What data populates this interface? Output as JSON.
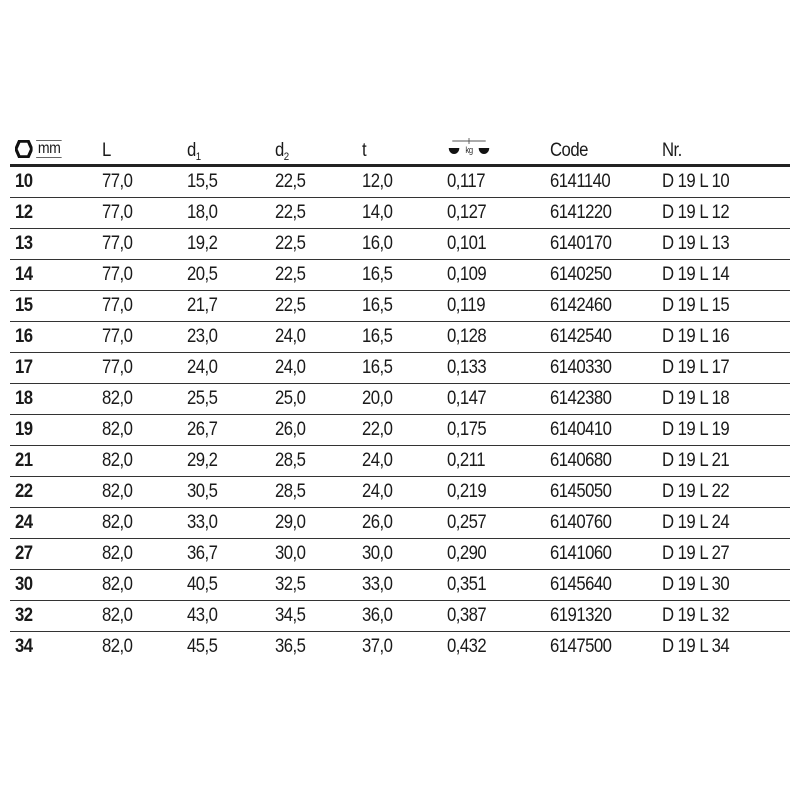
{
  "header": {
    "size_icon": "hexagon-icon",
    "size_unit": "mm",
    "L": "L",
    "d1": "d",
    "d1_sub": "1",
    "d2": "d",
    "d2_sub": "2",
    "t": "t",
    "weight_icon": "scale-icon",
    "weight_unit": "kg",
    "code": "Code",
    "nr": "Nr."
  },
  "rows": [
    [
      "10",
      "77,0",
      "15,5",
      "22,5",
      "12,0",
      "0,117",
      "6141140",
      "D 19 L 10"
    ],
    [
      "12",
      "77,0",
      "18,0",
      "22,5",
      "14,0",
      "0,127",
      "6141220",
      "D 19 L 12"
    ],
    [
      "13",
      "77,0",
      "19,2",
      "22,5",
      "16,0",
      "0,101",
      "6140170",
      "D 19 L 13"
    ],
    [
      "14",
      "77,0",
      "20,5",
      "22,5",
      "16,5",
      "0,109",
      "6140250",
      "D 19 L 14"
    ],
    [
      "15",
      "77,0",
      "21,7",
      "22,5",
      "16,5",
      "0,119",
      "6142460",
      "D 19 L 15"
    ],
    [
      "16",
      "77,0",
      "23,0",
      "24,0",
      "16,5",
      "0,128",
      "6142540",
      "D 19 L 16"
    ],
    [
      "17",
      "77,0",
      "24,0",
      "24,0",
      "16,5",
      "0,133",
      "6140330",
      "D 19 L 17"
    ],
    [
      "18",
      "82,0",
      "25,5",
      "25,0",
      "20,0",
      "0,147",
      "6142380",
      "D 19 L 18"
    ],
    [
      "19",
      "82,0",
      "26,7",
      "26,0",
      "22,0",
      "0,175",
      "6140410",
      "D 19 L 19"
    ],
    [
      "21",
      "82,0",
      "29,2",
      "28,5",
      "24,0",
      "0,211",
      "6140680",
      "D 19 L 21"
    ],
    [
      "22",
      "82,0",
      "30,5",
      "28,5",
      "24,0",
      "0,219",
      "6145050",
      "D 19 L 22"
    ],
    [
      "24",
      "82,0",
      "33,0",
      "29,0",
      "26,0",
      "0,257",
      "6140760",
      "D 19 L 24"
    ],
    [
      "27",
      "82,0",
      "36,7",
      "30,0",
      "30,0",
      "0,290",
      "6141060",
      "D 19 L 27"
    ],
    [
      "30",
      "82,0",
      "40,5",
      "32,5",
      "33,0",
      "0,351",
      "6145640",
      "D 19 L 30"
    ],
    [
      "32",
      "82,0",
      "43,0",
      "34,5",
      "36,0",
      "0,387",
      "6191320",
      "D 19 L 32"
    ],
    [
      "34",
      "82,0",
      "45,5",
      "36,5",
      "37,0",
      "0,432",
      "6147500",
      "D 19 L 34"
    ]
  ]
}
